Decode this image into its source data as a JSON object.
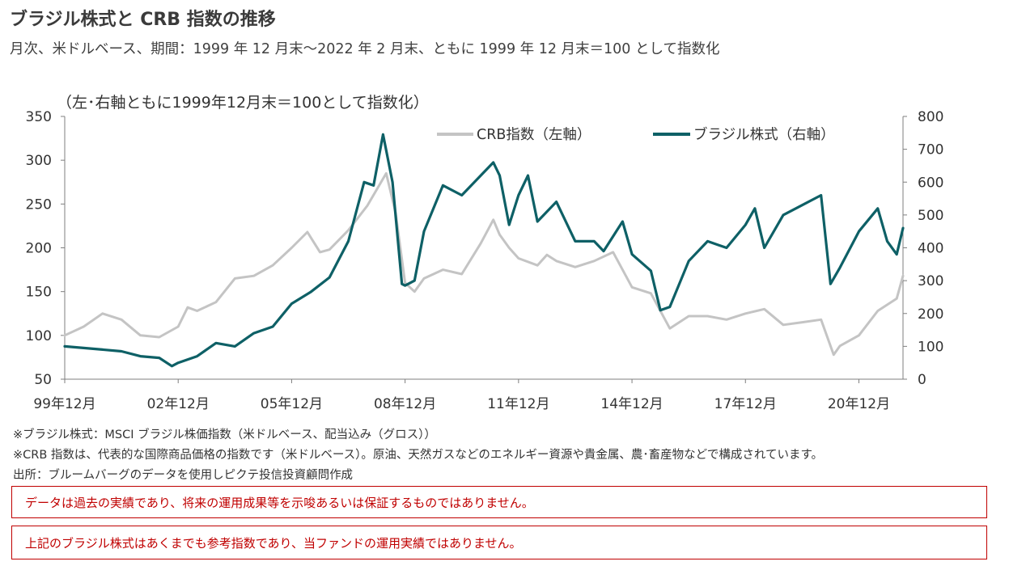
{
  "header": {
    "title": "ブラジル株式と CRB 指数の推移",
    "subtitle": "月次、米ドルベース、期間：1999 年 12 月末～2022 年 2 月末、ともに 1999 年 12 月末＝100 として指数化"
  },
  "chart_note": "（左･右軸ともに1999年12月末＝100として指数化）",
  "chart_data": {
    "type": "line",
    "x_tick_labels": [
      "99年12月",
      "02年12月",
      "05年12月",
      "08年12月",
      "11年12月",
      "14年12月",
      "17年12月",
      "20年12月"
    ],
    "x_range": [
      "1999-12",
      "2022-02"
    ],
    "y_left": {
      "range": [
        50,
        350
      ],
      "ticks": [
        50,
        100,
        150,
        200,
        250,
        300,
        350
      ],
      "tick_labels": [
        "50",
        "100",
        "150",
        "200",
        "250",
        "300",
        "350"
      ]
    },
    "y_right": {
      "range": [
        0,
        800
      ],
      "ticks": [
        0,
        100,
        200,
        300,
        400,
        500,
        600,
        700,
        800
      ],
      "tick_labels": [
        "0",
        "100",
        "200",
        "300",
        "400",
        "500",
        "600",
        "700",
        "800"
      ]
    },
    "grid": false,
    "legend_position": "top-right",
    "series": [
      {
        "name": "CRB指数（左軸）",
        "axis": "left",
        "color": "#c4c4c4",
        "points": [
          [
            "1999-12",
            100
          ],
          [
            "2000-06",
            110
          ],
          [
            "2000-12",
            125
          ],
          [
            "2001-06",
            118
          ],
          [
            "2001-12",
            100
          ],
          [
            "2002-06",
            98
          ],
          [
            "2002-12",
            110
          ],
          [
            "2003-03",
            132
          ],
          [
            "2003-06",
            128
          ],
          [
            "2003-12",
            138
          ],
          [
            "2004-06",
            165
          ],
          [
            "2004-12",
            168
          ],
          [
            "2005-06",
            180
          ],
          [
            "2005-12",
            200
          ],
          [
            "2006-05",
            218
          ],
          [
            "2006-09",
            195
          ],
          [
            "2006-12",
            198
          ],
          [
            "2007-06",
            220
          ],
          [
            "2007-12",
            248
          ],
          [
            "2008-06",
            285
          ],
          [
            "2008-09",
            240
          ],
          [
            "2008-12",
            160
          ],
          [
            "2009-03",
            150
          ],
          [
            "2009-06",
            165
          ],
          [
            "2009-12",
            175
          ],
          [
            "2010-06",
            170
          ],
          [
            "2010-12",
            205
          ],
          [
            "2011-04",
            232
          ],
          [
            "2011-06",
            215
          ],
          [
            "2011-09",
            200
          ],
          [
            "2011-12",
            188
          ],
          [
            "2012-06",
            180
          ],
          [
            "2012-09",
            192
          ],
          [
            "2012-12",
            185
          ],
          [
            "2013-06",
            178
          ],
          [
            "2013-12",
            185
          ],
          [
            "2014-06",
            195
          ],
          [
            "2014-12",
            155
          ],
          [
            "2015-06",
            148
          ],
          [
            "2015-12",
            108
          ],
          [
            "2016-06",
            122
          ],
          [
            "2016-12",
            122
          ],
          [
            "2017-06",
            118
          ],
          [
            "2017-12",
            125
          ],
          [
            "2018-06",
            130
          ],
          [
            "2018-12",
            112
          ],
          [
            "2019-06",
            115
          ],
          [
            "2019-12",
            118
          ],
          [
            "2020-04",
            78
          ],
          [
            "2020-06",
            88
          ],
          [
            "2020-12",
            100
          ],
          [
            "2021-06",
            128
          ],
          [
            "2021-12",
            142
          ],
          [
            "2022-02",
            168
          ]
        ]
      },
      {
        "name": "ブラジル株式（右軸）",
        "axis": "right",
        "color": "#0e6066",
        "points": [
          [
            "1999-12",
            100
          ],
          [
            "2000-06",
            95
          ],
          [
            "2000-12",
            90
          ],
          [
            "2001-06",
            85
          ],
          [
            "2001-12",
            70
          ],
          [
            "2002-06",
            65
          ],
          [
            "2002-10",
            40
          ],
          [
            "2002-12",
            50
          ],
          [
            "2003-06",
            70
          ],
          [
            "2003-12",
            110
          ],
          [
            "2004-06",
            100
          ],
          [
            "2004-12",
            140
          ],
          [
            "2005-06",
            160
          ],
          [
            "2005-12",
            230
          ],
          [
            "2006-06",
            265
          ],
          [
            "2006-12",
            310
          ],
          [
            "2007-06",
            420
          ],
          [
            "2007-11",
            600
          ],
          [
            "2008-02",
            590
          ],
          [
            "2008-05",
            745
          ],
          [
            "2008-08",
            600
          ],
          [
            "2008-11",
            290
          ],
          [
            "2008-12",
            285
          ],
          [
            "2009-03",
            300
          ],
          [
            "2009-06",
            450
          ],
          [
            "2009-12",
            590
          ],
          [
            "2010-06",
            560
          ],
          [
            "2010-12",
            620
          ],
          [
            "2011-04",
            660
          ],
          [
            "2011-06",
            620
          ],
          [
            "2011-09",
            470
          ],
          [
            "2011-12",
            560
          ],
          [
            "2012-03",
            620
          ],
          [
            "2012-06",
            480
          ],
          [
            "2012-12",
            540
          ],
          [
            "2013-06",
            420
          ],
          [
            "2013-12",
            420
          ],
          [
            "2014-03",
            390
          ],
          [
            "2014-09",
            480
          ],
          [
            "2014-12",
            380
          ],
          [
            "2015-06",
            330
          ],
          [
            "2015-09",
            210
          ],
          [
            "2015-12",
            220
          ],
          [
            "2016-06",
            360
          ],
          [
            "2016-12",
            420
          ],
          [
            "2017-06",
            400
          ],
          [
            "2017-12",
            470
          ],
          [
            "2018-03",
            520
          ],
          [
            "2018-06",
            400
          ],
          [
            "2018-12",
            500
          ],
          [
            "2019-06",
            530
          ],
          [
            "2019-12",
            560
          ],
          [
            "2020-03",
            290
          ],
          [
            "2020-06",
            340
          ],
          [
            "2020-12",
            450
          ],
          [
            "2021-06",
            520
          ],
          [
            "2021-09",
            420
          ],
          [
            "2021-12",
            380
          ],
          [
            "2022-02",
            460
          ]
        ]
      }
    ]
  },
  "footnotes": [
    "※ブラジル株式：MSCI ブラジル株価指数（米ドルベース、配当込み（グロス））",
    "※CRB 指数は、代表的な国際商品価格の指数です（米ドルベース）。原油、天然ガスなどのエネルギー資源や貴金属、農･畜産物などで構成されています。",
    "出所：ブルームバーグのデータを使用しピクテ投信投資顧問作成"
  ],
  "disclaimers": [
    "データは過去の実績であり、将来の運用成果等を示唆あるいは保証するものではありません。",
    "上記のブラジル株式はあくまでも参考指数であり、当ファンドの運用実績ではありません。"
  ]
}
